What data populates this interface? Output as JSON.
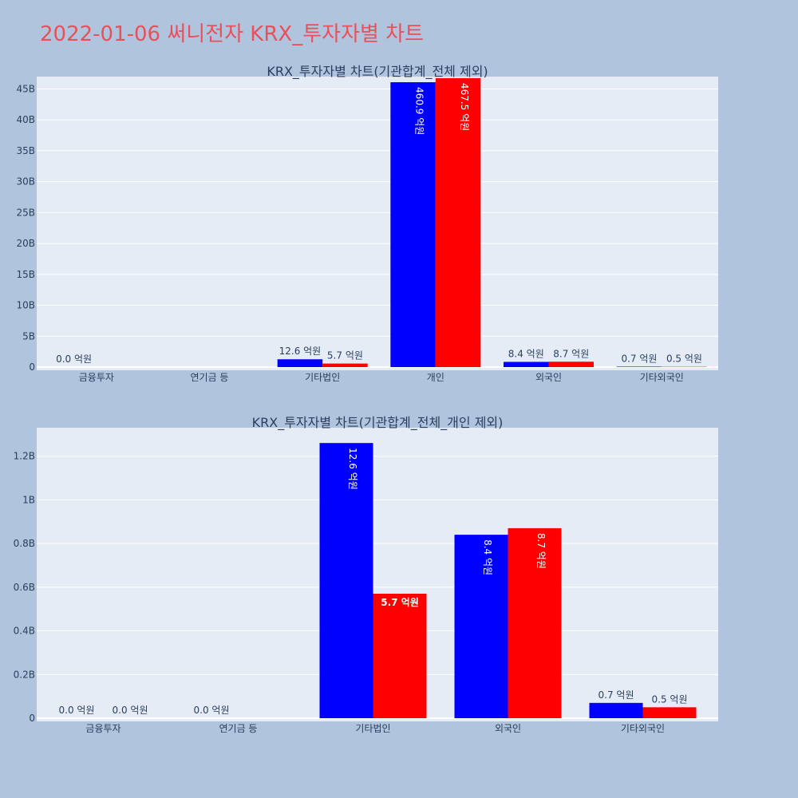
{
  "page": {
    "title": "2022-01-06 써니전자 KRX_투자자별 차트"
  },
  "colors": {
    "background": "#b0c4de",
    "plot_bg": "#e5ecf6",
    "title": "#e8505b",
    "series_a": "#0000ff",
    "series_b": "#ff0000"
  },
  "chart_data": [
    {
      "type": "bar",
      "title": "KRX_투자자별 차트(기관합계_전체 제외)",
      "categories": [
        "금융투자",
        "연기금 등",
        "기타법인",
        "개인",
        "외국인",
        "기타외국인"
      ],
      "ylim": [
        0,
        47
      ],
      "yticks": [
        0,
        5,
        10,
        15,
        20,
        25,
        30,
        35,
        40,
        45
      ],
      "ytick_labels": [
        "0",
        "5B",
        "10B",
        "15B",
        "20B",
        "25B",
        "30B",
        "35B",
        "40B",
        "45B"
      ],
      "grid": true,
      "series": [
        {
          "color": "#0000ff",
          "values": [
            0,
            null,
            1.26,
            46.09,
            0.84,
            0.07
          ],
          "labels": [
            "0.0 억원",
            "",
            "12.6 억원",
            "460.9 억원",
            "8.4 억원",
            "0.7 억원"
          ]
        },
        {
          "color": "#ff0000",
          "values": [
            null,
            null,
            0.57,
            46.75,
            0.87,
            0.05
          ],
          "labels": [
            "",
            "",
            "5.7 억원",
            "467.5 억원",
            "8.7 억원",
            "0.5 억원"
          ]
        }
      ]
    },
    {
      "type": "bar",
      "title": "KRX_투자자별 차트(기관합계_전체_개인 제외)",
      "categories": [
        "금융투자",
        "연기금 등",
        "기타법인",
        "외국인",
        "기타외국인"
      ],
      "ylim": [
        0,
        1.33
      ],
      "yticks": [
        0,
        0.2,
        0.4,
        0.6,
        0.8,
        1.0,
        1.2
      ],
      "ytick_labels": [
        "0",
        "0.2B",
        "0.4B",
        "0.6B",
        "0.8B",
        "1B",
        "1.2B"
      ],
      "grid": true,
      "series": [
        {
          "color": "#0000ff",
          "values": [
            0,
            0,
            1.26,
            0.84,
            0.07
          ],
          "labels": [
            "0.0 억원",
            "0.0 억원",
            "12.6 억원",
            "8.4 억원",
            "0.7 억원"
          ]
        },
        {
          "color": "#ff0000",
          "values": [
            0,
            null,
            0.57,
            0.87,
            0.05
          ],
          "labels": [
            "0.0 억원",
            "",
            "5.7 억원",
            "8.7 억원",
            "0.5 억원"
          ]
        }
      ]
    }
  ]
}
